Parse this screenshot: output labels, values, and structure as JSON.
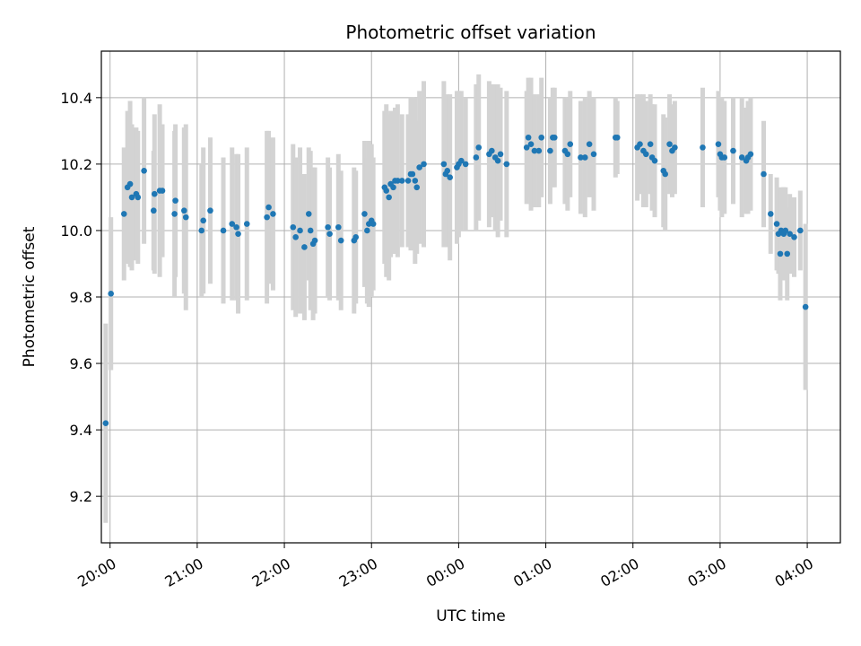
{
  "chart_data": {
    "type": "scatter",
    "title": "Photometric offset variation",
    "xlabel": "UTC time",
    "ylabel": "Photometric offset",
    "xlim": [
      -0.1,
      8.38
    ],
    "ylim": [
      9.06,
      10.54
    ],
    "x_units": "hours since 20:00 UTC",
    "x_ticks": [
      {
        "value": 0,
        "label": "20:00"
      },
      {
        "value": 1,
        "label": "21:00"
      },
      {
        "value": 2,
        "label": "22:00"
      },
      {
        "value": 3,
        "label": "23:00"
      },
      {
        "value": 4,
        "label": "00:00"
      },
      {
        "value": 5,
        "label": "01:00"
      },
      {
        "value": 6,
        "label": "02:00"
      },
      {
        "value": 7,
        "label": "03:00"
      },
      {
        "value": 8,
        "label": "04:00"
      }
    ],
    "y_ticks": [
      {
        "value": 9.2,
        "label": "9.2"
      },
      {
        "value": 9.4,
        "label": "9.4"
      },
      {
        "value": 9.6,
        "label": "9.6"
      },
      {
        "value": 9.8,
        "label": "9.8"
      },
      {
        "value": 10.0,
        "label": "10.0"
      },
      {
        "value": 10.2,
        "label": "10.2"
      },
      {
        "value": 10.4,
        "label": "10.4"
      }
    ],
    "grid": true,
    "colors": {
      "point": "#1f77b4",
      "errorbar": "#d3d3d3",
      "grid": "#b0b0b0"
    },
    "series": [
      {
        "x": [
          -0.05,
          0.01,
          0.16,
          0.2,
          0.23,
          0.25,
          0.3,
          0.32,
          0.39,
          0.5,
          0.51,
          0.57,
          0.6,
          0.74,
          0.75,
          0.85,
          0.87,
          1.05,
          1.07,
          1.15,
          1.3,
          1.4,
          1.45,
          1.47,
          1.57,
          1.8,
          1.82,
          1.87,
          2.1,
          2.13,
          2.18,
          2.23,
          2.28,
          2.3,
          2.33,
          2.35,
          2.5,
          2.52,
          2.62,
          2.65,
          2.8,
          2.82,
          2.92,
          2.95,
          2.97,
          3.0,
          3.02,
          3.15,
          3.17,
          3.2,
          3.22,
          3.25,
          3.27,
          3.3,
          3.35,
          3.42,
          3.45,
          3.47,
          3.5,
          3.52,
          3.55,
          3.6,
          3.83,
          3.85,
          3.87,
          3.9,
          3.98,
          4.0,
          4.03,
          4.08,
          4.2,
          4.23,
          4.35,
          4.38,
          4.42,
          4.45,
          4.48,
          4.55,
          4.78,
          4.8,
          4.83,
          4.87,
          4.92,
          4.95,
          5.05,
          5.08,
          5.1,
          5.22,
          5.25,
          5.28,
          5.4,
          5.45,
          5.5,
          5.55,
          5.8,
          5.82,
          6.05,
          6.08,
          6.12,
          6.15,
          6.2,
          6.22,
          6.25,
          6.35,
          6.37,
          6.42,
          6.45,
          6.48,
          6.8,
          6.98,
          7.0,
          7.02,
          7.05,
          7.15,
          7.25,
          7.3,
          7.32,
          7.35,
          7.5,
          7.58,
          7.65,
          7.67,
          7.69,
          7.7,
          7.73,
          7.75,
          7.77,
          7.8,
          7.85,
          7.92,
          7.98
        ],
        "y": [
          9.42,
          9.81,
          10.05,
          10.13,
          10.14,
          10.1,
          10.11,
          10.1,
          10.18,
          10.06,
          10.11,
          10.12,
          10.12,
          10.05,
          10.09,
          10.06,
          10.04,
          10.0,
          10.03,
          10.06,
          10.0,
          10.02,
          10.01,
          9.99,
          10.02,
          10.04,
          10.07,
          10.05,
          10.01,
          9.98,
          10.0,
          9.95,
          10.05,
          10.0,
          9.96,
          9.97,
          10.01,
          9.99,
          10.01,
          9.97,
          9.97,
          9.98,
          10.05,
          10.0,
          10.02,
          10.03,
          10.02,
          10.13,
          10.12,
          10.1,
          10.14,
          10.13,
          10.15,
          10.15,
          10.15,
          10.15,
          10.17,
          10.17,
          10.15,
          10.13,
          10.19,
          10.2,
          10.2,
          10.17,
          10.18,
          10.16,
          10.19,
          10.2,
          10.21,
          10.2,
          10.22,
          10.25,
          10.23,
          10.24,
          10.22,
          10.21,
          10.23,
          10.2,
          10.25,
          10.28,
          10.26,
          10.24,
          10.24,
          10.28,
          10.24,
          10.28,
          10.28,
          10.24,
          10.23,
          10.26,
          10.22,
          10.22,
          10.26,
          10.23,
          10.28,
          10.28,
          10.25,
          10.26,
          10.24,
          10.23,
          10.26,
          10.22,
          10.21,
          10.18,
          10.17,
          10.26,
          10.24,
          10.25,
          10.25,
          10.26,
          10.23,
          10.22,
          10.22,
          10.24,
          10.22,
          10.21,
          10.22,
          10.23,
          10.17,
          10.05,
          10.02,
          9.99,
          9.93,
          10.0,
          9.99,
          10.0,
          9.93,
          9.99,
          9.98,
          10.0,
          9.77
        ],
        "yerr": [
          0.3,
          0.23,
          0.2,
          0.23,
          0.25,
          0.22,
          0.2,
          0.2,
          0.22,
          0.18,
          0.24,
          0.26,
          0.2,
          0.25,
          0.23,
          0.25,
          0.28,
          0.2,
          0.22,
          0.22,
          0.22,
          0.23,
          0.22,
          0.24,
          0.23,
          0.26,
          0.23,
          0.23,
          0.25,
          0.24,
          0.25,
          0.22,
          0.2,
          0.24,
          0.23,
          0.22,
          0.21,
          0.2,
          0.22,
          0.21,
          0.22,
          0.2,
          0.22,
          0.22,
          0.25,
          0.23,
          0.2,
          0.23,
          0.26,
          0.25,
          0.22,
          0.2,
          0.22,
          0.23,
          0.2,
          0.2,
          0.23,
          0.23,
          0.25,
          0.2,
          0.23,
          0.25,
          0.25,
          0.22,
          0.23,
          0.25,
          0.23,
          0.22,
          0.21,
          0.2,
          0.22,
          0.22,
          0.22,
          0.2,
          0.22,
          0.23,
          0.2,
          0.22,
          0.17,
          0.18,
          0.2,
          0.17,
          0.17,
          0.18,
          0.16,
          0.15,
          0.15,
          0.16,
          0.17,
          0.16,
          0.17,
          0.18,
          0.16,
          0.17,
          0.12,
          0.11,
          0.16,
          0.15,
          0.17,
          0.16,
          0.15,
          0.16,
          0.17,
          0.17,
          0.17,
          0.15,
          0.14,
          0.14,
          0.18,
          0.16,
          0.17,
          0.18,
          0.17,
          0.16,
          0.18,
          0.16,
          0.17,
          0.17,
          0.16,
          0.12,
          0.14,
          0.12,
          0.14,
          0.13,
          0.14,
          0.13,
          0.14,
          0.12,
          0.12,
          0.12,
          0.25
        ]
      }
    ]
  }
}
